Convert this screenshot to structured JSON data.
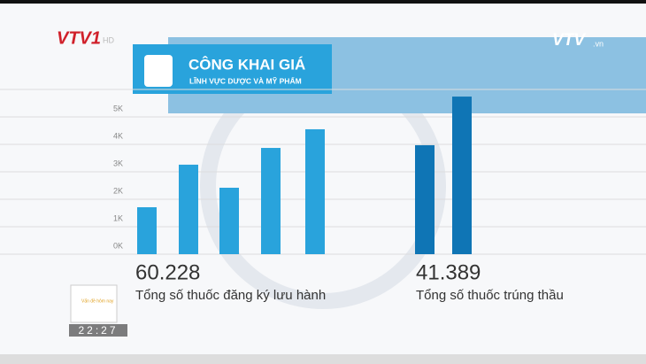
{
  "overlay": {
    "channel": "VTV1",
    "channel_hd": "HD",
    "site": "VTV",
    "site_suffix": ".vn",
    "clock": "22:27",
    "program": "Vấn đề hôm nay"
  },
  "header": {
    "title": "CÔNG KHAI GIÁ",
    "subtitle": "LĨNH VỰC DƯỢC VÀ MỸ PHẨM"
  },
  "chart_data": {
    "type": "bar",
    "categories": [
      null,
      null,
      null,
      null,
      null,
      null,
      null
    ],
    "values": [
      1.71,
      3.26,
      2.42,
      3.87,
      4.55,
      3.97,
      5.74
    ],
    "colors": [
      "#29a3dc",
      "#29a3dc",
      "#29a3dc",
      "#29a3dc",
      "#29a3dc",
      "#0f75b5",
      "#0f75b5"
    ],
    "ylim": [
      0,
      6
    ],
    "yticks": [
      {
        "value": 0,
        "label": "0K"
      },
      {
        "value": 1,
        "label": "1K"
      },
      {
        "value": 2,
        "label": "2K"
      },
      {
        "value": 3,
        "label": "3K"
      },
      {
        "value": 4,
        "label": "4K"
      },
      {
        "value": 5,
        "label": "5K"
      }
    ],
    "grid": true,
    "annotations": [
      {
        "number": "60.228",
        "caption": "Tổng số thuốc đăng ký lưu hành"
      },
      {
        "number": "41.389",
        "caption": "Tổng số thuốc trúng thầu"
      }
    ]
  }
}
